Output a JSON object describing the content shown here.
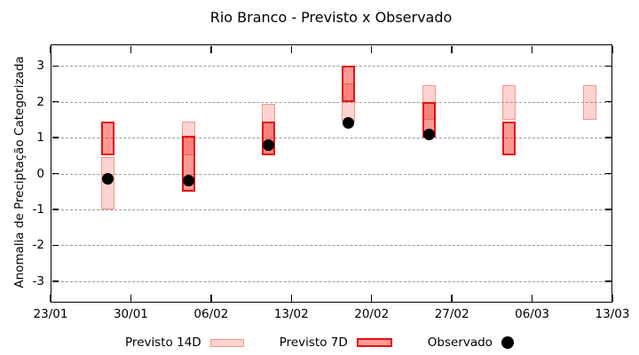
{
  "title": "Rio Branco - Previsto x Observado",
  "y_axis": {
    "label": "Anomalia de Preciptação Categorizada",
    "ticks": [
      3,
      2,
      1,
      0,
      -1,
      -2,
      -3
    ],
    "min": -3.6,
    "max": 3.6
  },
  "x_axis": {
    "min_day": 0,
    "max_day": 49,
    "ticks": [
      {
        "label": "23/01",
        "day": 0
      },
      {
        "label": "30/01",
        "day": 7
      },
      {
        "label": "06/02",
        "day": 14
      },
      {
        "label": "13/02",
        "day": 21
      },
      {
        "label": "20/02",
        "day": 28
      },
      {
        "label": "27/02",
        "day": 35
      },
      {
        "label": "06/03",
        "day": 42
      },
      {
        "label": "13/03",
        "day": 49
      }
    ]
  },
  "legend": {
    "previsto14_label": "Previsto 14D",
    "previsto7_label": "Previsto 7D",
    "observado_label": "Observado"
  },
  "colors": {
    "forecast14_fill": "rgba(244,30,18,0.20)",
    "forecast14_border": "#f0988a",
    "forecast7_fill": "rgba(244,30,18,0.45)",
    "forecast7_border": "#e81010",
    "observed": "#000000",
    "grid": "#999999"
  },
  "chart_data": {
    "type": "range-bar",
    "title": "Rio Branco - Previsto x Observado",
    "xlabel": "",
    "ylabel": "Anomalia de Preciptação Categorizada",
    "ylim": [
      -3.6,
      3.6
    ],
    "series_names": [
      "Previsto 14D",
      "Previsto 7D",
      "Observado"
    ],
    "points": [
      {
        "date": "28/01",
        "day": 5,
        "previsto14": [
          -1.0,
          0.45
        ],
        "previsto7": [
          0.5,
          1.45
        ],
        "observado": -0.15
      },
      {
        "date": "04/02",
        "day": 12,
        "previsto14": [
          0.5,
          1.45
        ],
        "previsto7": [
          -0.5,
          1.05
        ],
        "observado": -0.2
      },
      {
        "date": "11/02",
        "day": 19,
        "previsto14": [
          0.5,
          1.95
        ],
        "previsto7": [
          0.5,
          1.45
        ],
        "observado": 0.8
      },
      {
        "date": "18/02",
        "day": 26,
        "previsto14": [
          1.45,
          2.5
        ],
        "previsto7": [
          2.0,
          3.0
        ],
        "observado": 1.4
      },
      {
        "date": "25/02",
        "day": 33,
        "previsto14": [
          1.5,
          2.45
        ],
        "previsto7": [
          1.0,
          2.0
        ],
        "observado": 1.1
      },
      {
        "date": "04/03",
        "day": 40,
        "previsto14": [
          1.5,
          2.45
        ],
        "previsto7": [
          0.5,
          1.45
        ],
        "observado": null
      },
      {
        "date": "11/03",
        "day": 47,
        "previsto14": [
          1.5,
          2.45
        ],
        "previsto7": null,
        "observado": null
      }
    ]
  }
}
